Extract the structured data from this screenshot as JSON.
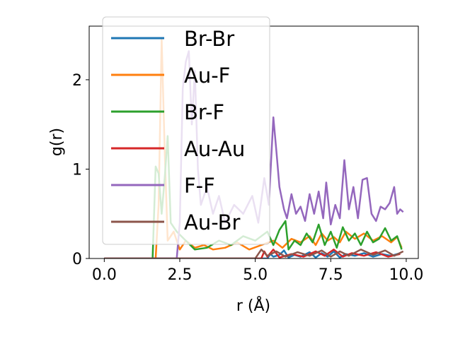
{
  "chart_data": {
    "type": "line",
    "xlabel": "r (Å)",
    "ylabel": "g(r)",
    "xlim": [
      -0.5,
      10.4
    ],
    "ylim": [
      0,
      2.6
    ],
    "xticks": [
      0.0,
      2.5,
      5.0,
      7.5,
      10.0
    ],
    "xtick_labels": [
      "0.0",
      "2.5",
      "5.0",
      "7.5",
      "10.0"
    ],
    "yticks": [
      0,
      1,
      2
    ],
    "ytick_labels": [
      "0",
      "1",
      "2"
    ],
    "grid": false,
    "legend_position": "upper-left",
    "series": [
      {
        "name": "Br-Br",
        "color": "#1f77b4",
        "points": [
          [
            0,
            0
          ],
          [
            5.4,
            0
          ],
          [
            5.5,
            0.05
          ],
          [
            5.6,
            0.02
          ],
          [
            5.8,
            0.04
          ],
          [
            5.95,
            0.09
          ],
          [
            6.1,
            0.01
          ],
          [
            6.3,
            0.04
          ],
          [
            6.5,
            0.02
          ],
          [
            6.8,
            0.07
          ],
          [
            7.0,
            0.01
          ],
          [
            7.2,
            0.06
          ],
          [
            7.4,
            0.02
          ],
          [
            7.6,
            0.08
          ],
          [
            7.8,
            0.01
          ],
          [
            8.0,
            0.05
          ],
          [
            8.3,
            0.03
          ],
          [
            8.6,
            0.06
          ],
          [
            8.9,
            0.02
          ],
          [
            9.2,
            0.05
          ],
          [
            9.5,
            0.03
          ],
          [
            9.8,
            0.06
          ]
        ]
      },
      {
        "name": "Au-F",
        "color": "#ff7f0e",
        "points": [
          [
            0,
            0
          ],
          [
            1.7,
            0
          ],
          [
            1.8,
            0.6
          ],
          [
            1.9,
            2.45
          ],
          [
            2.0,
            1.2
          ],
          [
            2.1,
            0.2
          ],
          [
            2.3,
            0.3
          ],
          [
            2.5,
            0.1
          ],
          [
            2.7,
            0.2
          ],
          [
            3.0,
            0.12
          ],
          [
            3.3,
            0.15
          ],
          [
            3.6,
            0.1
          ],
          [
            4.0,
            0.12
          ],
          [
            4.4,
            0.18
          ],
          [
            4.8,
            0.1
          ],
          [
            5.2,
            0.15
          ],
          [
            5.6,
            0.2
          ],
          [
            5.9,
            0.12
          ],
          [
            6.2,
            0.22
          ],
          [
            6.5,
            0.18
          ],
          [
            6.8,
            0.25
          ],
          [
            7.0,
            0.15
          ],
          [
            7.2,
            0.28
          ],
          [
            7.4,
            0.2
          ],
          [
            7.6,
            0.24
          ],
          [
            7.8,
            0.18
          ],
          [
            8.0,
            0.3
          ],
          [
            8.3,
            0.22
          ],
          [
            8.6,
            0.28
          ],
          [
            8.9,
            0.2
          ],
          [
            9.2,
            0.25
          ],
          [
            9.5,
            0.18
          ],
          [
            9.7,
            0.24
          ],
          [
            9.85,
            0.12
          ]
        ]
      },
      {
        "name": "Br-F",
        "color": "#2ca02c",
        "points": [
          [
            0,
            0
          ],
          [
            1.6,
            0
          ],
          [
            1.7,
            1.03
          ],
          [
            1.8,
            0.95
          ],
          [
            1.9,
            0.5
          ],
          [
            2.0,
            0.9
          ],
          [
            2.1,
            1.37
          ],
          [
            2.2,
            0.4
          ],
          [
            2.4,
            0.3
          ],
          [
            2.7,
            0.2
          ],
          [
            3.0,
            0.1
          ],
          [
            3.4,
            0.12
          ],
          [
            3.8,
            0.2
          ],
          [
            4.2,
            0.15
          ],
          [
            4.6,
            0.25
          ],
          [
            5.0,
            0.2
          ],
          [
            5.4,
            0.3
          ],
          [
            5.6,
            0.15
          ],
          [
            5.8,
            0.32
          ],
          [
            6.0,
            0.42
          ],
          [
            6.1,
            0.1
          ],
          [
            6.3,
            0.2
          ],
          [
            6.5,
            0.15
          ],
          [
            6.7,
            0.28
          ],
          [
            6.9,
            0.18
          ],
          [
            7.1,
            0.38
          ],
          [
            7.3,
            0.15
          ],
          [
            7.5,
            0.3
          ],
          [
            7.7,
            0.12
          ],
          [
            7.9,
            0.35
          ],
          [
            8.1,
            0.2
          ],
          [
            8.3,
            0.28
          ],
          [
            8.5,
            0.15
          ],
          [
            8.7,
            0.3
          ],
          [
            8.9,
            0.18
          ],
          [
            9.1,
            0.22
          ],
          [
            9.3,
            0.34
          ],
          [
            9.5,
            0.2
          ],
          [
            9.7,
            0.25
          ],
          [
            9.85,
            0.1
          ]
        ]
      },
      {
        "name": "Au-Au",
        "color": "#d62728",
        "points": [
          [
            0,
            0
          ],
          [
            5.2,
            0
          ],
          [
            5.3,
            0.08
          ],
          [
            5.4,
            0.02
          ],
          [
            5.6,
            0.1
          ],
          [
            5.8,
            0.01
          ],
          [
            6.2,
            0.05
          ],
          [
            6.6,
            0.02
          ],
          [
            7.0,
            0.08
          ],
          [
            7.3,
            0.03
          ],
          [
            7.6,
            0.1
          ],
          [
            7.9,
            0.02
          ],
          [
            8.2,
            0.06
          ],
          [
            8.6,
            0.03
          ],
          [
            9.0,
            0.07
          ],
          [
            9.4,
            0.02
          ],
          [
            9.8,
            0.05
          ]
        ]
      },
      {
        "name": "F-F",
        "color": "#9467bd",
        "points": [
          [
            0,
            0
          ],
          [
            2.4,
            0
          ],
          [
            2.5,
            0.4
          ],
          [
            2.6,
            1.9
          ],
          [
            2.7,
            2.2
          ],
          [
            2.8,
            2.32
          ],
          [
            2.9,
            1.5
          ],
          [
            3.0,
            2.1
          ],
          [
            3.1,
            1.0
          ],
          [
            3.2,
            0.6
          ],
          [
            3.4,
            0.8
          ],
          [
            3.6,
            0.5
          ],
          [
            3.8,
            0.7
          ],
          [
            4.0,
            0.4
          ],
          [
            4.3,
            0.6
          ],
          [
            4.6,
            0.5
          ],
          [
            4.9,
            0.7
          ],
          [
            5.1,
            0.4
          ],
          [
            5.3,
            0.9
          ],
          [
            5.45,
            0.6
          ],
          [
            5.6,
            1.58
          ],
          [
            5.7,
            1.2
          ],
          [
            5.8,
            0.8
          ],
          [
            5.95,
            0.55
          ],
          [
            6.05,
            0.45
          ],
          [
            6.2,
            0.72
          ],
          [
            6.35,
            0.5
          ],
          [
            6.5,
            0.58
          ],
          [
            6.65,
            0.42
          ],
          [
            6.8,
            0.72
          ],
          [
            6.95,
            0.5
          ],
          [
            7.1,
            0.75
          ],
          [
            7.25,
            0.45
          ],
          [
            7.35,
            0.85
          ],
          [
            7.5,
            0.38
          ],
          [
            7.65,
            0.6
          ],
          [
            7.8,
            0.45
          ],
          [
            7.95,
            1.1
          ],
          [
            8.1,
            0.55
          ],
          [
            8.25,
            0.8
          ],
          [
            8.4,
            0.45
          ],
          [
            8.55,
            0.88
          ],
          [
            8.7,
            0.9
          ],
          [
            8.85,
            0.5
          ],
          [
            9.0,
            0.42
          ],
          [
            9.15,
            0.58
          ],
          [
            9.3,
            0.55
          ],
          [
            9.45,
            0.62
          ],
          [
            9.6,
            0.8
          ],
          [
            9.7,
            0.5
          ],
          [
            9.8,
            0.55
          ],
          [
            9.9,
            0.52
          ]
        ]
      },
      {
        "name": "Au-Br",
        "color": "#8c564b",
        "points": [
          [
            0,
            0
          ],
          [
            5.0,
            0
          ],
          [
            5.2,
            0.1
          ],
          [
            5.4,
            0.03
          ],
          [
            5.7,
            0.08
          ],
          [
            6.0,
            0.02
          ],
          [
            6.4,
            0.07
          ],
          [
            6.8,
            0.03
          ],
          [
            7.2,
            0.09
          ],
          [
            7.5,
            0.02
          ],
          [
            7.8,
            0.08
          ],
          [
            8.1,
            0.03
          ],
          [
            8.5,
            0.1
          ],
          [
            8.9,
            0.04
          ],
          [
            9.3,
            0.09
          ],
          [
            9.6,
            0.03
          ],
          [
            9.9,
            0.08
          ]
        ]
      }
    ]
  }
}
